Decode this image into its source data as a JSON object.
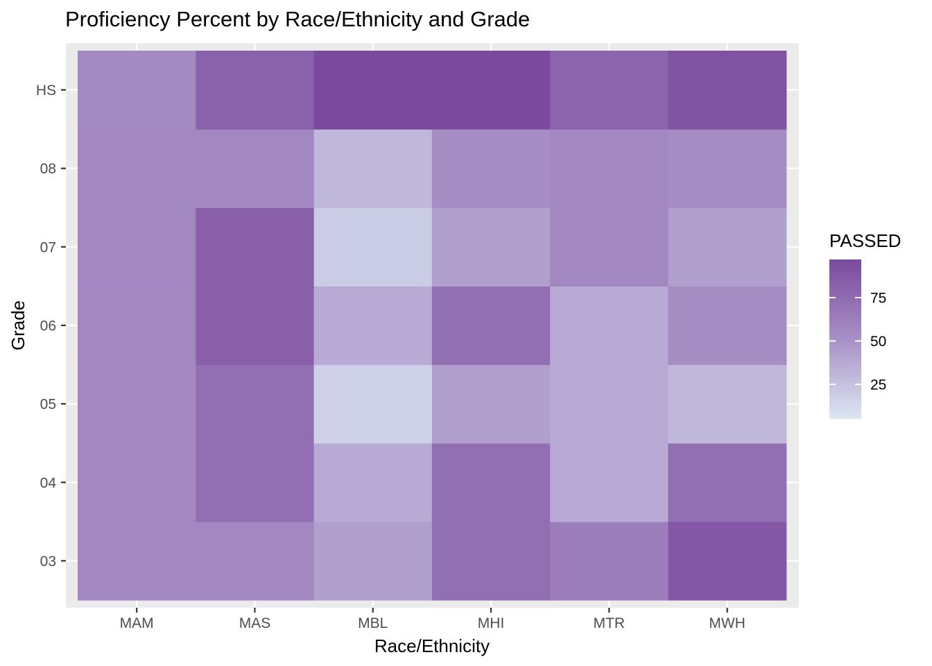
{
  "chart_data": {
    "type": "heatmap",
    "title": "Proficiency Percent by Race/Ethnicity and Grade",
    "xlabel": "Race/Ethnicity",
    "ylabel": "Grade",
    "x_categories": [
      "MAM",
      "MAS",
      "MBL",
      "MHI",
      "MTR",
      "MWH"
    ],
    "y_categories": [
      "03",
      "04",
      "05",
      "06",
      "07",
      "08",
      "HS"
    ],
    "values": {
      "MAM": {
        "03": 57,
        "04": 57,
        "05": 57,
        "06": 57,
        "07": 57,
        "08": 57,
        "HS": 55
      },
      "MAS": {
        "03": 57,
        "04": 73,
        "05": 73,
        "06": 83,
        "07": 83,
        "08": 57,
        "HS": 82
      },
      "MBL": {
        "03": 43,
        "04": 37,
        "05": 17,
        "06": 37,
        "07": 20,
        "08": 30,
        "HS": 97
      },
      "MHI": {
        "03": 73,
        "04": 73,
        "05": 43,
        "06": 73,
        "07": 43,
        "08": 53,
        "HS": 97
      },
      "MTR": {
        "03": 63,
        "04": 37,
        "05": 37,
        "06": 37,
        "07": 57,
        "08": 57,
        "HS": 80
      },
      "MWH": {
        "03": 88,
        "04": 73,
        "05": 30,
        "06": 53,
        "07": 43,
        "08": 53,
        "HS": 92
      }
    },
    "fill_range": [
      5,
      97
    ],
    "legend": {
      "title": "PASSED",
      "breaks": [
        25,
        50,
        75
      ],
      "breaks_labels": [
        "25",
        "50",
        "75"
      ],
      "placement": "right"
    },
    "colors": {
      "low": "#dbe7f3",
      "mid": "#a890c6",
      "high": "#7b4a9e",
      "panel": "#ebebeb",
      "grid": "#ffffff"
    },
    "grid": true
  }
}
